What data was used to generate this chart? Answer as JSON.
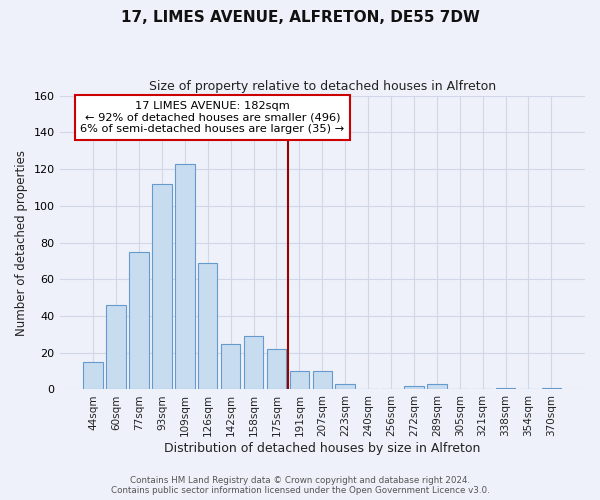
{
  "title": "17, LIMES AVENUE, ALFRETON, DE55 7DW",
  "subtitle": "Size of property relative to detached houses in Alfreton",
  "xlabel": "Distribution of detached houses by size in Alfreton",
  "ylabel": "Number of detached properties",
  "bar_labels": [
    "44sqm",
    "60sqm",
    "77sqm",
    "93sqm",
    "109sqm",
    "126sqm",
    "142sqm",
    "158sqm",
    "175sqm",
    "191sqm",
    "207sqm",
    "223sqm",
    "240sqm",
    "256sqm",
    "272sqm",
    "289sqm",
    "305sqm",
    "321sqm",
    "338sqm",
    "354sqm",
    "370sqm"
  ],
  "bar_values": [
    15,
    46,
    75,
    112,
    123,
    69,
    25,
    29,
    22,
    10,
    10,
    3,
    0,
    0,
    2,
    3,
    0,
    0,
    1,
    0,
    1
  ],
  "bar_color": "#c8dcf0",
  "bar_edge_color": "#6699cc",
  "vline_x": 8.5,
  "vline_color": "#990000",
  "annotation_title": "17 LIMES AVENUE: 182sqm",
  "annotation_line1": "← 92% of detached houses are smaller (496)",
  "annotation_line2": "6% of semi-detached houses are larger (35) →",
  "annotation_box_color": "#ffffff",
  "annotation_box_edge": "#cc0000",
  "ylim": [
    0,
    160
  ],
  "yticks": [
    0,
    20,
    40,
    60,
    80,
    100,
    120,
    140,
    160
  ],
  "footer1": "Contains HM Land Registry data © Crown copyright and database right 2024.",
  "footer2": "Contains public sector information licensed under the Open Government Licence v3.0.",
  "bg_color": "#eef1f9",
  "grid_color": "#d0d8e8"
}
